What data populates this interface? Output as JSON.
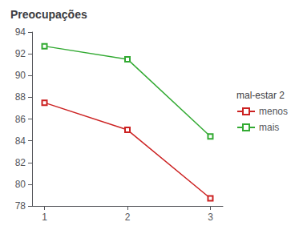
{
  "chart_data": {
    "type": "line",
    "title": "Preocupações",
    "legend_title": "mal-estar 2",
    "x": [
      1,
      2,
      3
    ],
    "series": [
      {
        "name": "menos",
        "color": "#cc2222",
        "values": [
          87.5,
          85.0,
          78.7
        ]
      },
      {
        "name": "mais",
        "color": "#33aa33",
        "values": [
          92.7,
          91.5,
          84.4
        ]
      }
    ],
    "xlim": [
      0.85,
      3.15
    ],
    "xticks": [
      1,
      2,
      3
    ],
    "ylim": [
      78,
      94
    ],
    "yticks": [
      78,
      80,
      82,
      84,
      86,
      88,
      90,
      92,
      94
    ],
    "grid": false,
    "legend": "right",
    "marker": "square"
  }
}
